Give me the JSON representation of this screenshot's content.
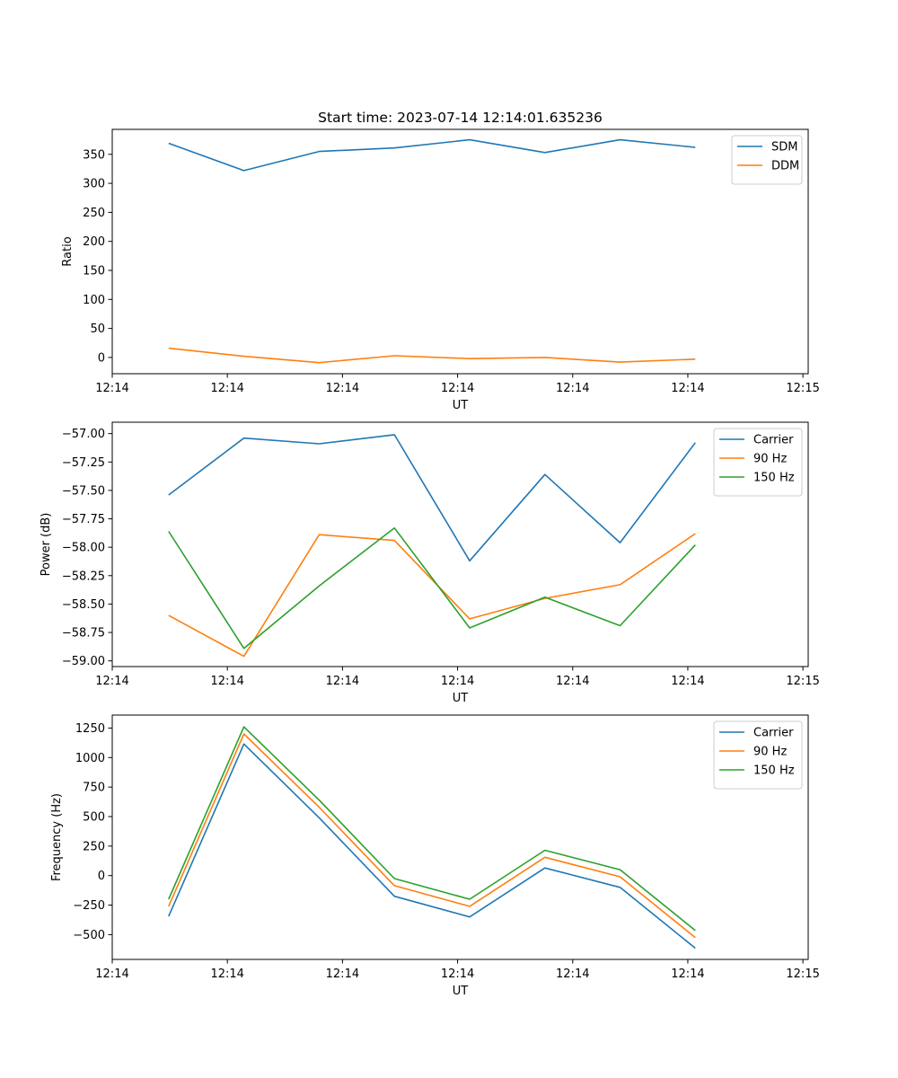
{
  "chart_data": [
    {
      "type": "line",
      "title": "Start time: 2023-07-14 12:14:01.635236",
      "xlabel": "UT",
      "ylabel": "Ratio",
      "xlim": [
        -0.75,
        8.5
      ],
      "ylim": [
        -28,
        393
      ],
      "x": [
        0,
        1,
        2,
        3,
        4,
        5,
        6,
        7
      ],
      "xticks": [
        -0.75,
        0.78,
        2.31,
        3.84,
        5.37,
        6.9,
        8.43
      ],
      "xtick_labels": [
        "12:14",
        "12:14",
        "12:14",
        "12:14",
        "12:14",
        "12:14",
        "12:15"
      ],
      "yticks": [
        0,
        50,
        100,
        150,
        200,
        250,
        300,
        350
      ],
      "ytick_labels": [
        "0",
        "50",
        "100",
        "150",
        "200",
        "250",
        "300",
        "350"
      ],
      "legend_position": "top-right",
      "series": [
        {
          "name": "SDM",
          "color": "#1f77b4",
          "values": [
            369,
            322,
            355,
            361,
            375,
            353,
            375,
            362
          ]
        },
        {
          "name": "DDM",
          "color": "#ff7f0e",
          "values": [
            16,
            2,
            -9,
            3,
            -2,
            0,
            -8,
            -3
          ]
        }
      ]
    },
    {
      "type": "line",
      "title": "",
      "xlabel": "UT",
      "ylabel": "Power (dB)",
      "xlim": [
        -0.75,
        8.5
      ],
      "ylim": [
        -59.05,
        -56.9
      ],
      "x": [
        0,
        1,
        2,
        3,
        4,
        5,
        6,
        7
      ],
      "xticks": [
        -0.75,
        0.78,
        2.31,
        3.84,
        5.37,
        6.9,
        8.43
      ],
      "xtick_labels": [
        "12:14",
        "12:14",
        "12:14",
        "12:14",
        "12:14",
        "12:14",
        "12:15"
      ],
      "yticks": [
        -59.0,
        -58.75,
        -58.5,
        -58.25,
        -58.0,
        -57.75,
        -57.5,
        -57.25,
        -57.0
      ],
      "ytick_labels": [
        "−59.00",
        "−58.75",
        "−58.50",
        "−58.25",
        "−58.00",
        "−57.75",
        "−57.50",
        "−57.25",
        "−57.00"
      ],
      "legend_position": "top-right",
      "series": [
        {
          "name": "Carrier",
          "color": "#1f77b4",
          "values": [
            -57.54,
            -57.04,
            -57.09,
            -57.01,
            -58.12,
            -57.36,
            -57.96,
            -57.08
          ]
        },
        {
          "name": "90 Hz",
          "color": "#ff7f0e",
          "values": [
            -58.6,
            -58.96,
            -57.89,
            -57.94,
            -58.63,
            -58.45,
            -58.33,
            -57.88
          ]
        },
        {
          "name": "150 Hz",
          "color": "#2ca02c",
          "values": [
            -57.86,
            -58.89,
            -58.34,
            -57.83,
            -58.71,
            -58.44,
            -58.69,
            -57.98
          ]
        }
      ]
    },
    {
      "type": "line",
      "title": "",
      "xlabel": "UT",
      "ylabel": "Frequency (Hz)",
      "xlim": [
        -0.75,
        8.5
      ],
      "ylim": [
        -710,
        1360
      ],
      "x": [
        0,
        1,
        2,
        3,
        4,
        5,
        6,
        7
      ],
      "xticks": [
        -0.75,
        0.78,
        2.31,
        3.84,
        5.37,
        6.9,
        8.43
      ],
      "xtick_labels": [
        "12:14",
        "12:14",
        "12:14",
        "12:14",
        "12:14",
        "12:14",
        "12:15"
      ],
      "yticks": [
        -500,
        -250,
        0,
        250,
        500,
        750,
        1000,
        1250
      ],
      "ytick_labels": [
        "−500",
        "−250",
        "0",
        "250",
        "500",
        "750",
        "1000",
        "1250"
      ],
      "legend_position": "top-right",
      "series": [
        {
          "name": "Carrier",
          "color": "#1f77b4",
          "values": [
            -345,
            1115,
            490,
            -175,
            -350,
            65,
            -100,
            -615
          ]
        },
        {
          "name": "90 Hz",
          "color": "#ff7f0e",
          "values": [
            -260,
            1200,
            580,
            -85,
            -260,
            155,
            -10,
            -525
          ]
        },
        {
          "name": "150 Hz",
          "color": "#2ca02c",
          "values": [
            -200,
            1260,
            640,
            -25,
            -200,
            215,
            50,
            -465
          ]
        }
      ]
    }
  ]
}
